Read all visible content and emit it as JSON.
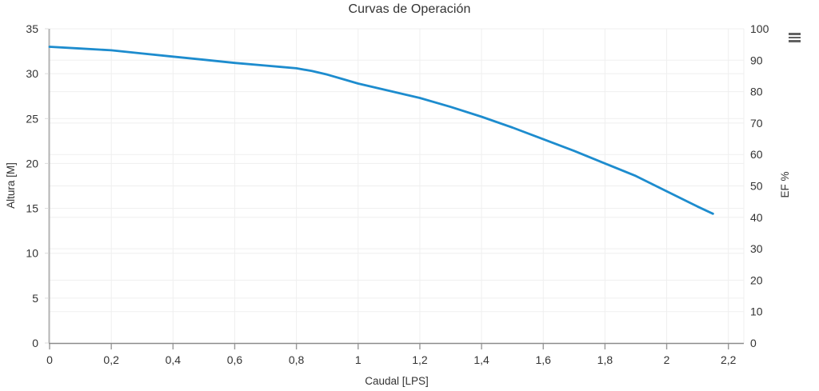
{
  "header": {
    "title": "Curvas de Operación",
    "context_menu_icon": "hamburger"
  },
  "colors": {
    "series_blue": "#1d8cce",
    "grid_line": "#efefef",
    "x_axis_line": "#8c8c8c",
    "y_axis_line": "#b3b3b3",
    "tick_mark": "#999999",
    "axis_label": "#333333",
    "title_text": "#333333",
    "menu_icon": "#616161",
    "background": "#ffffff"
  },
  "chart_data": {
    "type": "line",
    "title": "Curvas de Operación",
    "xlabel": "Caudal [LPS]",
    "ylabel_left": "Altura [M]",
    "ylabel_right": "EF %",
    "xlim": [
      0,
      2.25
    ],
    "ylim_left": [
      0,
      35
    ],
    "ylim_right": [
      0,
      100
    ],
    "grid": true,
    "legend": "none",
    "x_tick_values": [
      0,
      0.2,
      0.4,
      0.6,
      0.8,
      1,
      1.2,
      1.4,
      1.6,
      1.8,
      2,
      2.2
    ],
    "x_tick_labels": [
      "0",
      "0,2",
      "0,4",
      "0,6",
      "0,8",
      "1",
      "1,2",
      "1,4",
      "1,6",
      "1,8",
      "2",
      "2,2"
    ],
    "y_left_tick_values": [
      0,
      5,
      10,
      15,
      20,
      25,
      30,
      35
    ],
    "y_left_tick_labels": [
      "0",
      "5",
      "10",
      "15",
      "20",
      "25",
      "30",
      "35"
    ],
    "y_right_tick_values": [
      0,
      10,
      20,
      30,
      40,
      50,
      60,
      70,
      80,
      90,
      100
    ],
    "y_right_tick_labels": [
      "0",
      "10",
      "20",
      "30",
      "40",
      "50",
      "60",
      "70",
      "80",
      "90",
      "100"
    ],
    "series": [
      {
        "name": "Altura",
        "axis": "left",
        "color": "#1d8cce",
        "line_width": 2.8,
        "x": [
          0,
          0.1,
          0.2,
          0.3,
          0.4,
          0.5,
          0.6,
          0.7,
          0.75,
          0.8,
          0.85,
          0.9,
          0.95,
          1.0,
          1.1,
          1.2,
          1.3,
          1.4,
          1.5,
          1.6,
          1.7,
          1.8,
          1.9,
          2.0,
          2.1,
          2.15
        ],
        "y": [
          33.0,
          32.8,
          32.6,
          32.25,
          31.9,
          31.55,
          31.2,
          30.9,
          30.75,
          30.6,
          30.3,
          29.9,
          29.4,
          28.9,
          28.1,
          27.3,
          26.3,
          25.2,
          24.0,
          22.7,
          21.4,
          20.0,
          18.6,
          16.9,
          15.2,
          14.4
        ]
      }
    ]
  }
}
